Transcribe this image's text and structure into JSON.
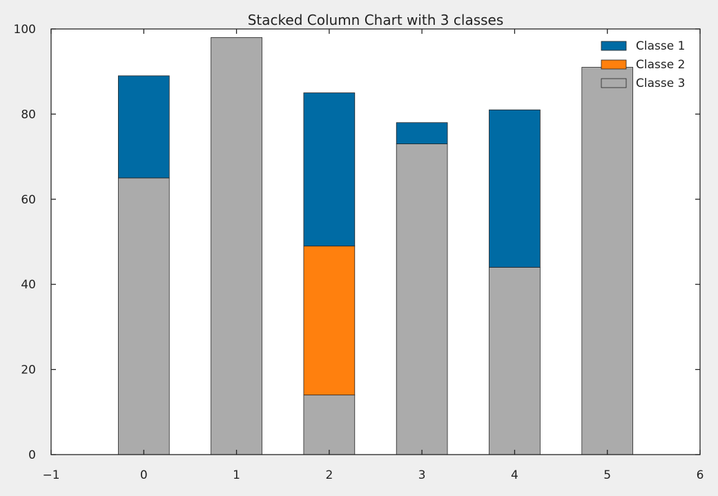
{
  "chart_data": {
    "type": "bar",
    "stacked": true,
    "title": "Stacked Column Chart with 3 classes",
    "xlabel": "",
    "ylabel": "",
    "xlim": [
      -1,
      6
    ],
    "ylim": [
      0,
      100
    ],
    "x_ticks": [
      "−1",
      "0",
      "1",
      "2",
      "3",
      "4",
      "5",
      "6"
    ],
    "y_ticks": [
      "0",
      "20",
      "40",
      "60",
      "80",
      "100"
    ],
    "categories": [
      0,
      1,
      2,
      3,
      4,
      5
    ],
    "series": [
      {
        "name": "Classe 1",
        "color": "#006ba4",
        "values": [
          24,
          0,
          36,
          5,
          37,
          0
        ]
      },
      {
        "name": "Classe 2",
        "color": "#ff800e",
        "values": [
          0,
          0,
          35,
          0,
          0,
          0
        ]
      },
      {
        "name": "Classe 3",
        "color": "#ababab",
        "values": [
          65,
          98,
          14,
          73,
          44,
          91
        ]
      }
    ],
    "grid": false,
    "legend_position": "top-right"
  }
}
